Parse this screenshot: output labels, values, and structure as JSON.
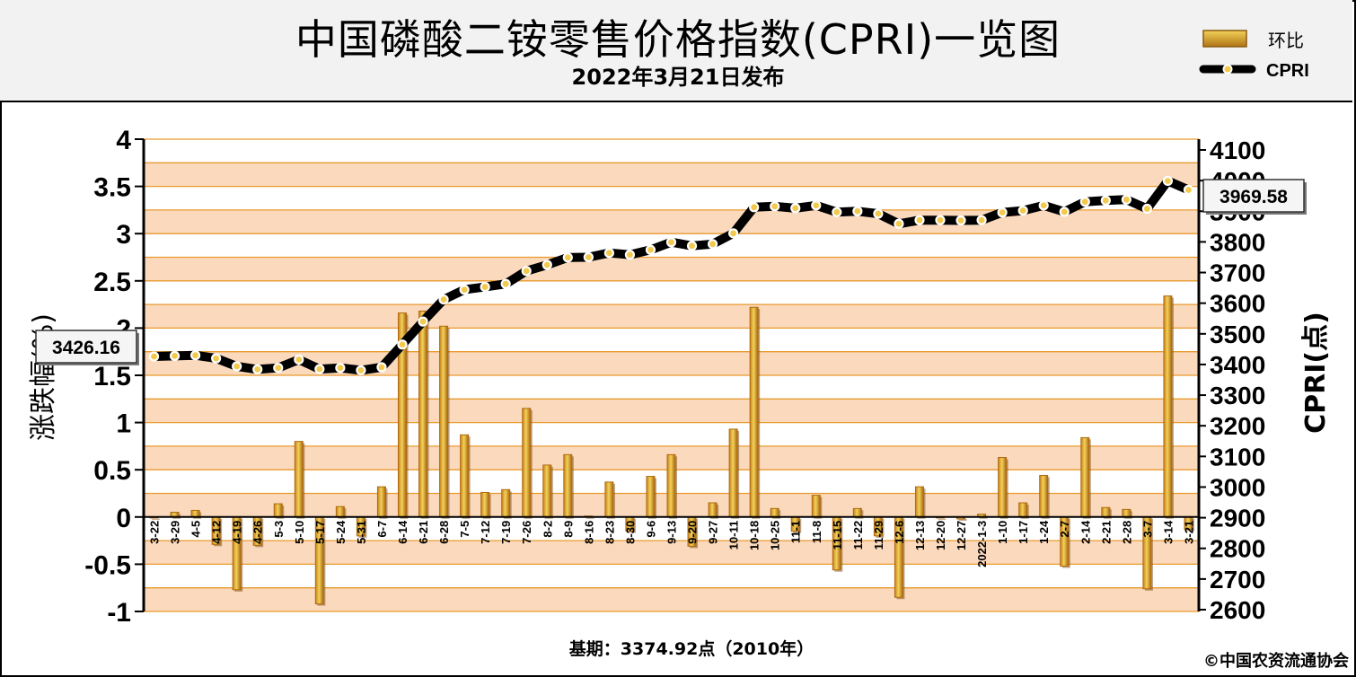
{
  "header": {
    "title": "中国磷酸二铵零售价格指数(CPRI)一览图",
    "subtitle": "2022年3月21日发布"
  },
  "legend": {
    "items": [
      {
        "label": "环比",
        "kind": "bar",
        "color": "#d4a83a"
      },
      {
        "label": "CPRI",
        "kind": "line",
        "color": "#000000"
      }
    ]
  },
  "footer": {
    "base_period": "基期：3374.92点（2010年）",
    "copyright": "©中国农资流通协会"
  },
  "chart_data": {
    "type": "bar",
    "ylabel": "涨跌幅(%)",
    "ylabel_right": "CPRI(点)",
    "ylim": [
      -1,
      4
    ],
    "ylim_right": [
      2600,
      4100
    ],
    "yticks": [
      "4",
      "3.5",
      "3",
      "2.5",
      "2",
      "1.5",
      "1",
      "0.5",
      "0",
      "-0.5",
      "-1"
    ],
    "yticks_right": [
      "4100",
      "4000",
      "3900",
      "3800",
      "3700",
      "3600",
      "3500",
      "3400",
      "3300",
      "3200",
      "3100",
      "3000",
      "2900",
      "2800",
      "2700",
      "2600"
    ],
    "categories": [
      "3-22",
      "3-29",
      "4-5",
      "4-12",
      "4-19",
      "4-26",
      "5-3",
      "5-10",
      "5-17",
      "5-24",
      "5-31",
      "6-7",
      "6-14",
      "6-21",
      "6-28",
      "7-5",
      "7-12",
      "7-19",
      "7-26",
      "8-2",
      "8-9",
      "8-16",
      "8-23",
      "8-30",
      "9-6",
      "9-13",
      "9-20",
      "9-27",
      "10-11",
      "10-18",
      "10-25",
      "11-1",
      "11-8",
      "11-15",
      "11-22",
      "11-29",
      "12-6",
      "12-13",
      "12-20",
      "12-27",
      "2022-1-3",
      "1-10",
      "1-17",
      "1-24",
      "2-7",
      "2-14",
      "2-21",
      "2-28",
      "3-7",
      "3-14",
      "3-21"
    ],
    "series": [
      {
        "name": "环比",
        "type": "bar",
        "color": "#d4a83a",
        "values": [
          -0.01,
          0.05,
          0.07,
          -0.29,
          -0.77,
          -0.3,
          0.14,
          0.8,
          -0.92,
          0.11,
          -0.2,
          0.32,
          2.16,
          2.18,
          2.02,
          0.87,
          0.26,
          0.29,
          1.15,
          0.55,
          0.66,
          0.01,
          0.37,
          -0.15,
          0.43,
          0.66,
          -0.31,
          0.15,
          0.93,
          2.22,
          0.09,
          -0.15,
          0.23,
          -0.56,
          0.09,
          -0.2,
          -0.85,
          0.32,
          -0.01,
          -0.02,
          0.03,
          0.63,
          0.15,
          0.44,
          -0.52,
          0.84,
          0.1,
          0.08,
          -0.76,
          2.34,
          -0.13
        ]
      },
      {
        "name": "CPRI",
        "type": "line",
        "axis": "right",
        "color": "#000000",
        "values": [
          3426.16,
          3428,
          3430,
          3420,
          3394,
          3384,
          3389,
          3416,
          3385,
          3389,
          3381,
          3391,
          3465,
          3540,
          3612,
          3644,
          3653,
          3663,
          3705,
          3725,
          3749,
          3750,
          3764,
          3758,
          3774,
          3799,
          3787,
          3793,
          3828,
          3913,
          3916,
          3910,
          3919,
          3897,
          3900,
          3892,
          3859,
          3871,
          3871,
          3870,
          3871,
          3896,
          3902,
          3919,
          3898,
          3931,
          3935,
          3938,
          3908,
          3999,
          3969.58
        ]
      }
    ],
    "annotations": [
      {
        "label": "3426.16",
        "target": "first"
      },
      {
        "label": "3969.58",
        "target": "last"
      }
    ],
    "grid": true
  }
}
